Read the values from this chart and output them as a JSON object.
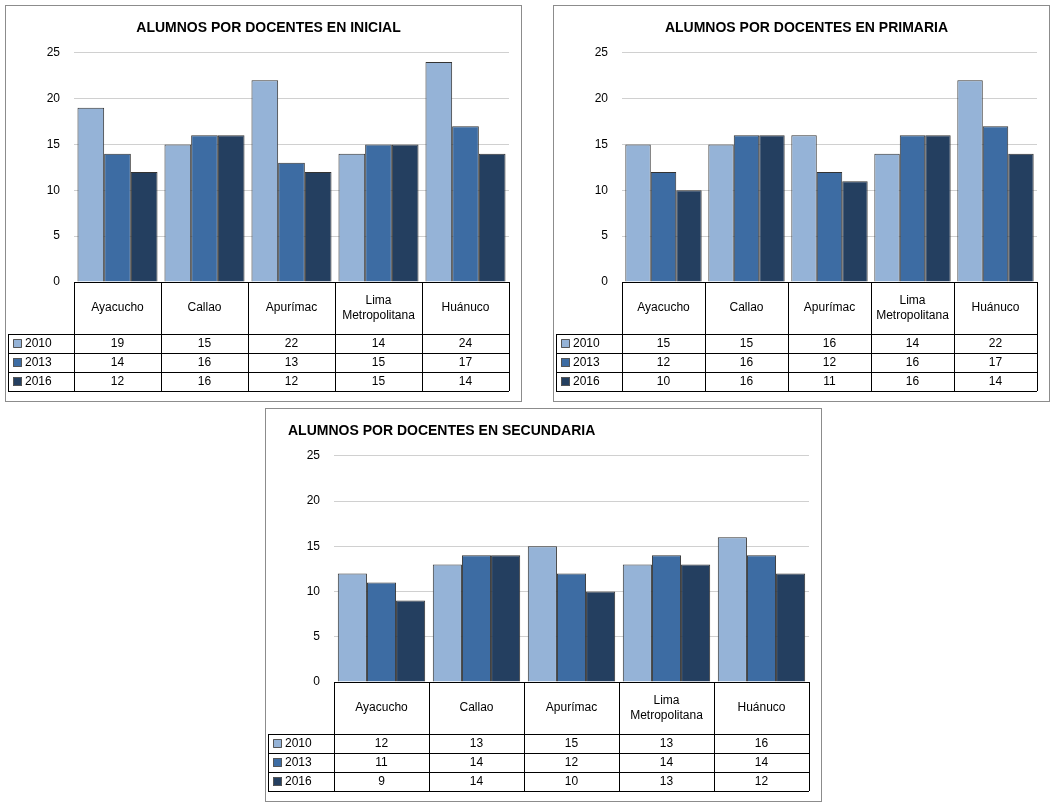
{
  "chart_data": [
    {
      "type": "bar",
      "title": "ALUMNOS POR DOCENTES EN INICIAL",
      "categories": [
        "Ayacucho",
        "Callao",
        "Apurímac",
        "Lima Metropolitana",
        "Huánuco"
      ],
      "series": [
        {
          "name": "2010",
          "color": "#95b3d7",
          "values": [
            19,
            15,
            22,
            14,
            24
          ]
        },
        {
          "name": "2013",
          "color": "#3d6ca3",
          "values": [
            14,
            16,
            13,
            15,
            17
          ]
        },
        {
          "name": "2016",
          "color": "#243f60",
          "values": [
            12,
            16,
            12,
            15,
            14
          ]
        }
      ],
      "ylim": [
        0,
        25
      ],
      "yticks": [
        0,
        5,
        10,
        15,
        20,
        25
      ],
      "grid": "y",
      "legend": "bottom",
      "data_labels": true
    },
    {
      "type": "bar",
      "title": "ALUMNOS POR DOCENTES EN PRIMARIA",
      "categories": [
        "Ayacucho",
        "Callao",
        "Apurímac",
        "Lima Metropolitana",
        "Huánuco"
      ],
      "series": [
        {
          "name": "2010",
          "color": "#95b3d7",
          "values": [
            15,
            15,
            16,
            14,
            22
          ]
        },
        {
          "name": "2013",
          "color": "#3d6ca3",
          "values": [
            12,
            16,
            12,
            16,
            17
          ]
        },
        {
          "name": "2016",
          "color": "#243f60",
          "values": [
            10,
            16,
            11,
            16,
            14
          ]
        }
      ],
      "ylim": [
        0,
        25
      ],
      "yticks": [
        0,
        5,
        10,
        15,
        20,
        25
      ],
      "grid": "y",
      "legend": "bottom",
      "data_labels": true
    },
    {
      "type": "bar",
      "title": "ALUMNOS POR DOCENTES EN SECUNDARIA",
      "categories": [
        "Ayacucho",
        "Callao",
        "Apurímac",
        "Lima Metropolitana",
        "Huánuco"
      ],
      "series": [
        {
          "name": "2010",
          "color": "#95b3d7",
          "values": [
            12,
            13,
            15,
            13,
            16
          ]
        },
        {
          "name": "2013",
          "color": "#3d6ca3",
          "values": [
            11,
            14,
            12,
            14,
            14
          ]
        },
        {
          "name": "2016",
          "color": "#243f60",
          "values": [
            9,
            14,
            10,
            13,
            12
          ]
        }
      ],
      "ylim": [
        0,
        25
      ],
      "yticks": [
        0,
        5,
        10,
        15,
        20,
        25
      ],
      "grid": "y",
      "legend": "bottom",
      "data_labels": true
    }
  ]
}
